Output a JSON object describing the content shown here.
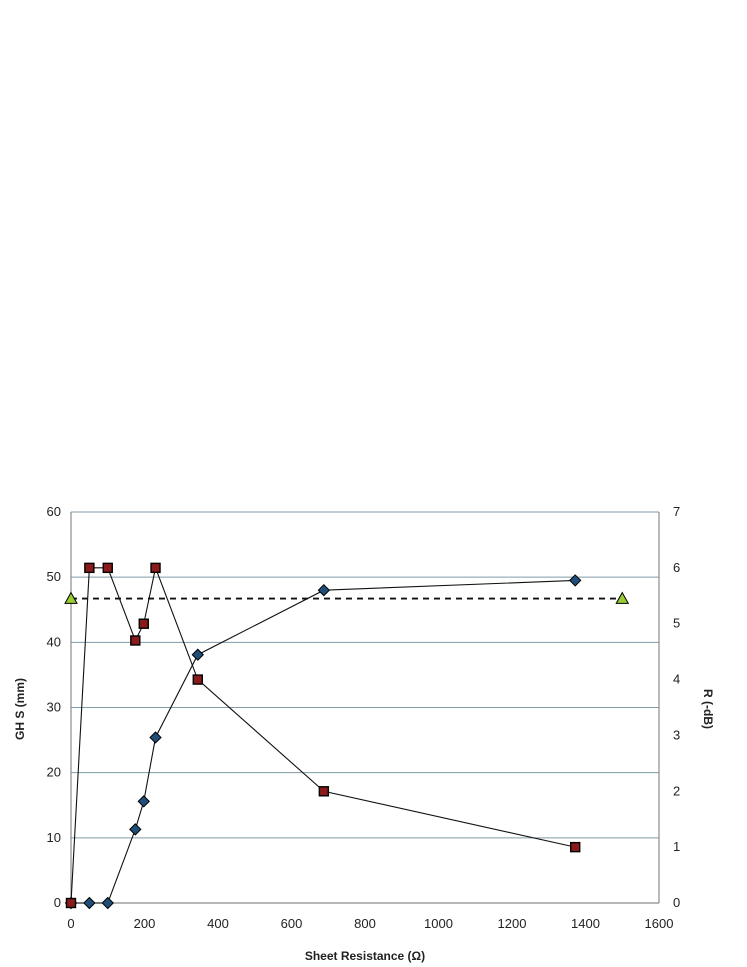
{
  "chart_data": {
    "type": "scatter",
    "xlabel": "Sheet Resistance (Ω)",
    "ylabel_left": "GH S (mm)",
    "ylabel_right": "R (-dB)",
    "xlim": [
      0,
      1600
    ],
    "ylim_left": [
      0,
      60
    ],
    "ylim_right": [
      0,
      7
    ],
    "x_ticks": [
      0,
      200,
      400,
      600,
      800,
      1000,
      1200,
      1400,
      1600
    ],
    "y_left_ticks": [
      0,
      10,
      20,
      30,
      40,
      50,
      60
    ],
    "y_right_ticks": [
      0,
      1,
      2,
      3,
      4,
      5,
      6,
      7
    ],
    "grid": "horizontal",
    "legend": "none",
    "series": [
      {
        "marker": "diamond",
        "axis": "left",
        "line": "solid",
        "color": "#1f4e79",
        "x": [
          0,
          50,
          100,
          175,
          198,
          230,
          345,
          688,
          1372
        ],
        "y": [
          0,
          0,
          0,
          11.3,
          15.6,
          25.4,
          38.1,
          48,
          49.5
        ]
      },
      {
        "marker": "square",
        "axis": "right",
        "line": "solid",
        "color": "#8b1a1a",
        "x": [
          0,
          50,
          100,
          175,
          198,
          230,
          345,
          688,
          1372
        ],
        "y": [
          0,
          6,
          6,
          4.7,
          5,
          6,
          4,
          2,
          1
        ]
      },
      {
        "marker": "triangle",
        "axis": "right",
        "line": "dashed",
        "color": "#9acd32",
        "x": [
          0,
          1500
        ],
        "y": [
          5.45,
          5.45
        ]
      }
    ]
  }
}
